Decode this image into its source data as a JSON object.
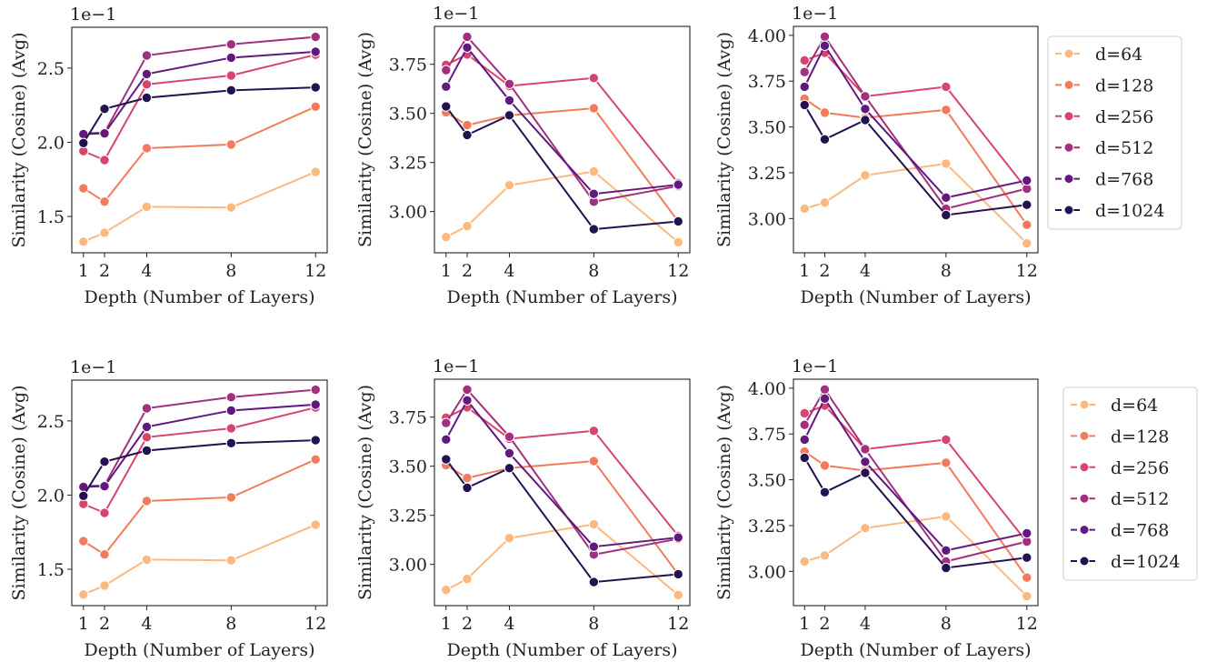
{
  "chart_data": [
    {
      "type": "line",
      "panel": "top-left",
      "xlabel": "Depth (Number of Layers)",
      "ylabel": "Similarity (Cosine) (Avg)",
      "offset_text": "1e−1",
      "x": [
        1,
        2,
        4,
        8,
        12
      ],
      "xticks": [
        1,
        2,
        4,
        8,
        12
      ],
      "xlim": [
        0.45,
        12.55
      ],
      "ylim": [
        1.255,
        2.775
      ],
      "yticks": [
        1.5,
        2.0,
        2.5
      ],
      "ytick_labels": [
        "1.5",
        "2.0",
        "2.5"
      ],
      "series": [
        {
          "name": "d=64",
          "values": [
            1.33,
            1.39,
            1.565,
            1.56,
            1.8
          ]
        },
        {
          "name": "d=128",
          "values": [
            1.69,
            1.6,
            1.96,
            1.985,
            2.24
          ]
        },
        {
          "name": "d=256",
          "values": [
            1.94,
            1.88,
            2.39,
            2.45,
            2.59
          ]
        },
        {
          "name": "d=512",
          "values": [
            2.06,
            2.065,
            2.585,
            2.66,
            2.71
          ]
        },
        {
          "name": "d=768",
          "values": [
            2.055,
            2.06,
            2.46,
            2.57,
            2.61
          ]
        },
        {
          "name": "d=1024",
          "values": [
            1.995,
            2.225,
            2.3,
            2.35,
            2.37
          ]
        }
      ]
    },
    {
      "type": "line",
      "panel": "top-middle",
      "xlabel": "Depth (Number of Layers)",
      "ylabel": "Similarity (Cosine) (Avg)",
      "offset_text": "1e−1",
      "x": [
        1,
        2,
        4,
        8,
        12
      ],
      "xticks": [
        1,
        2,
        4,
        8,
        12
      ],
      "xlim": [
        0.45,
        12.55
      ],
      "ylim": [
        2.79,
        3.943
      ],
      "yticks": [
        3.0,
        3.25,
        3.5,
        3.75
      ],
      "ytick_labels": [
        "3.00",
        "3.25",
        "3.50",
        "3.75"
      ],
      "series": [
        {
          "name": "d=64",
          "values": [
            2.87,
            2.926,
            3.134,
            3.204,
            2.844
          ]
        },
        {
          "name": "d=128",
          "values": [
            3.505,
            3.44,
            3.49,
            3.526,
            2.95
          ]
        },
        {
          "name": "d=256",
          "values": [
            3.747,
            3.8,
            3.64,
            3.68,
            3.145
          ]
        },
        {
          "name": "d=512",
          "values": [
            3.72,
            3.89,
            3.65,
            3.05,
            3.13
          ]
        },
        {
          "name": "d=768",
          "values": [
            3.636,
            3.835,
            3.566,
            3.09,
            3.137
          ]
        },
        {
          "name": "d=1024",
          "values": [
            3.535,
            3.39,
            3.49,
            2.91,
            2.95
          ]
        }
      ]
    },
    {
      "type": "line",
      "panel": "top-right",
      "xlabel": "Depth (Number of Layers)",
      "ylabel": "Similarity (Cosine) (Avg)",
      "offset_text": "1e−1",
      "x": [
        1,
        2,
        4,
        8,
        12
      ],
      "xticks": [
        1,
        2,
        4,
        8,
        12
      ],
      "xlim": [
        0.45,
        12.55
      ],
      "ylim": [
        2.813,
        4.049
      ],
      "yticks": [
        3.0,
        3.25,
        3.5,
        3.75,
        4.0
      ],
      "ytick_labels": [
        "3.00",
        "3.25",
        "3.50",
        "3.75",
        "4.00"
      ],
      "series": [
        {
          "name": "d=64",
          "values": [
            3.054,
            3.087,
            3.236,
            3.3,
            2.865
          ]
        },
        {
          "name": "d=128",
          "values": [
            3.654,
            3.578,
            3.55,
            3.593,
            2.966
          ]
        },
        {
          "name": "d=256",
          "values": [
            3.863,
            3.905,
            3.667,
            3.719,
            3.16
          ]
        },
        {
          "name": "d=512",
          "values": [
            3.8,
            3.993,
            3.667,
            3.054,
            3.163
          ]
        },
        {
          "name": "d=768",
          "values": [
            3.719,
            3.943,
            3.598,
            3.114,
            3.208
          ]
        },
        {
          "name": "d=1024",
          "values": [
            3.62,
            3.432,
            3.538,
            3.019,
            3.075
          ]
        }
      ]
    },
    {
      "type": "line",
      "panel": "bottom-left",
      "xlabel": "Depth (Number of Layers)",
      "ylabel": "Similarity (Cosine) (Avg)",
      "offset_text": "1e−1",
      "x": [
        1,
        2,
        4,
        8,
        12
      ],
      "xticks": [
        1,
        2,
        4,
        8,
        12
      ],
      "xlim": [
        0.45,
        12.55
      ],
      "ylim": [
        1.255,
        2.775
      ],
      "yticks": [
        1.5,
        2.0,
        2.5
      ],
      "ytick_labels": [
        "1.5",
        "2.0",
        "2.5"
      ],
      "series": [
        {
          "name": "d=64",
          "values": [
            1.33,
            1.39,
            1.565,
            1.56,
            1.8
          ]
        },
        {
          "name": "d=128",
          "values": [
            1.69,
            1.6,
            1.96,
            1.985,
            2.24
          ]
        },
        {
          "name": "d=256",
          "values": [
            1.94,
            1.88,
            2.39,
            2.45,
            2.59
          ]
        },
        {
          "name": "d=512",
          "values": [
            2.06,
            2.065,
            2.585,
            2.66,
            2.71
          ]
        },
        {
          "name": "d=768",
          "values": [
            2.055,
            2.06,
            2.46,
            2.57,
            2.61
          ]
        },
        {
          "name": "d=1024",
          "values": [
            1.995,
            2.225,
            2.3,
            2.35,
            2.37
          ]
        }
      ]
    },
    {
      "type": "line",
      "panel": "bottom-middle",
      "xlabel": "Depth (Number of Layers)",
      "ylabel": "Similarity (Cosine) (Avg)",
      "offset_text": "1e−1",
      "x": [
        1,
        2,
        4,
        8,
        12
      ],
      "xticks": [
        1,
        2,
        4,
        8,
        12
      ],
      "xlim": [
        0.45,
        12.55
      ],
      "ylim": [
        2.79,
        3.943
      ],
      "yticks": [
        3.0,
        3.25,
        3.5,
        3.75
      ],
      "ytick_labels": [
        "3.00",
        "3.25",
        "3.50",
        "3.75"
      ],
      "series": [
        {
          "name": "d=64",
          "values": [
            2.87,
            2.926,
            3.134,
            3.204,
            2.844
          ]
        },
        {
          "name": "d=128",
          "values": [
            3.505,
            3.44,
            3.49,
            3.526,
            2.95
          ]
        },
        {
          "name": "d=256",
          "values": [
            3.747,
            3.8,
            3.64,
            3.68,
            3.145
          ]
        },
        {
          "name": "d=512",
          "values": [
            3.72,
            3.89,
            3.65,
            3.05,
            3.13
          ]
        },
        {
          "name": "d=768",
          "values": [
            3.636,
            3.835,
            3.566,
            3.09,
            3.137
          ]
        },
        {
          "name": "d=1024",
          "values": [
            3.535,
            3.39,
            3.49,
            2.91,
            2.95
          ]
        }
      ]
    },
    {
      "type": "line",
      "panel": "bottom-right",
      "xlabel": "Depth (Number of Layers)",
      "ylabel": "Similarity (Cosine) (Avg)",
      "offset_text": "1e−1",
      "x": [
        1,
        2,
        4,
        8,
        12
      ],
      "xticks": [
        1,
        2,
        4,
        8,
        12
      ],
      "xlim": [
        0.45,
        12.55
      ],
      "ylim": [
        2.813,
        4.049
      ],
      "yticks": [
        3.0,
        3.25,
        3.5,
        3.75,
        4.0
      ],
      "ytick_labels": [
        "3.00",
        "3.25",
        "3.50",
        "3.75",
        "4.00"
      ],
      "series": [
        {
          "name": "d=64",
          "values": [
            3.054,
            3.087,
            3.236,
            3.3,
            2.865
          ]
        },
        {
          "name": "d=128",
          "values": [
            3.654,
            3.578,
            3.55,
            3.593,
            2.966
          ]
        },
        {
          "name": "d=256",
          "values": [
            3.863,
            3.905,
            3.667,
            3.719,
            3.16
          ]
        },
        {
          "name": "d=512",
          "values": [
            3.8,
            3.993,
            3.667,
            3.054,
            3.163
          ]
        },
        {
          "name": "d=768",
          "values": [
            3.719,
            3.943,
            3.598,
            3.114,
            3.208
          ]
        },
        {
          "name": "d=1024",
          "values": [
            3.62,
            3.432,
            3.538,
            3.019,
            3.075
          ]
        }
      ]
    }
  ],
  "legend": {
    "placement": "right",
    "entries": [
      "d=64",
      "d=128",
      "d=256",
      "d=512",
      "d=768",
      "d=1024"
    ],
    "colors": [
      "#fbb97f",
      "#f37b5b",
      "#d8456c",
      "#a2307e",
      "#62197f",
      "#231151"
    ]
  }
}
